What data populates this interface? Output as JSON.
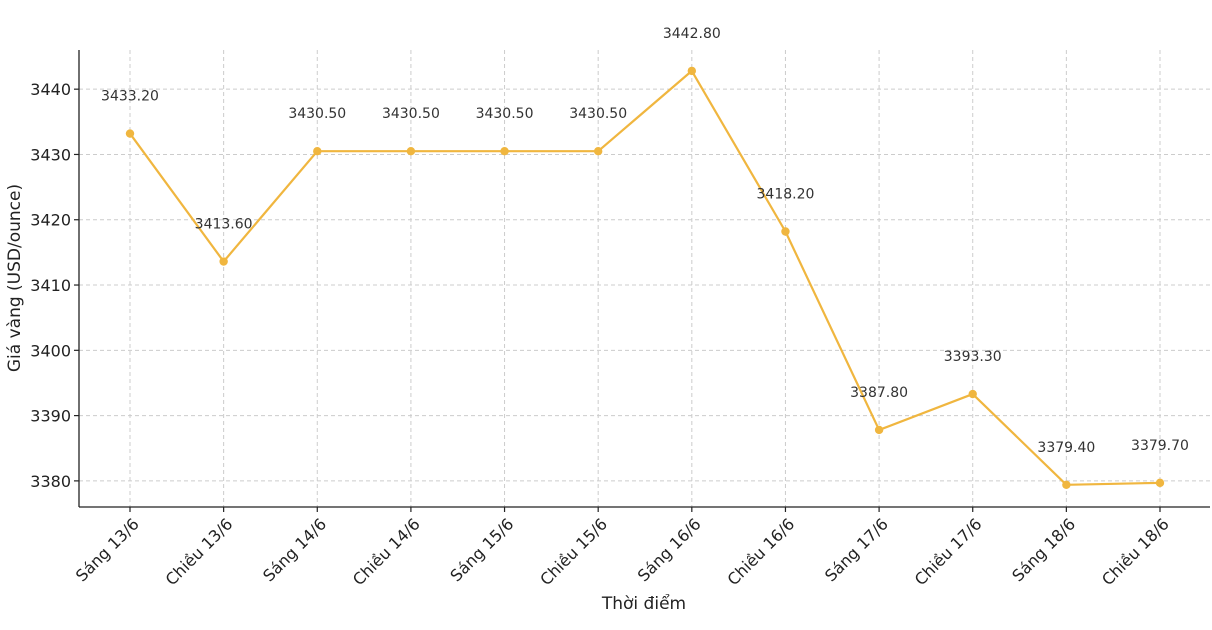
{
  "chart_data": {
    "type": "line",
    "xlabel": "Thời điểm",
    "ylabel": "Giá vàng (USD/ounce)",
    "ylim": [
      3376,
      3446
    ],
    "yticks": [
      3380,
      3390,
      3400,
      3410,
      3420,
      3430,
      3440
    ],
    "grid": true,
    "color": "#f0b63f",
    "categories": [
      "Sáng 13/6",
      "Chiều 13/6",
      "Sáng 14/6",
      "Chiều 14/6",
      "Sáng 15/6",
      "Chiều 15/6",
      "Sáng 16/6",
      "Chiều 16/6",
      "Sáng 17/6",
      "Chiều 17/6",
      "Sáng 18/6",
      "Chiều 18/6"
    ],
    "values": [
      3433.2,
      3413.6,
      3430.5,
      3430.5,
      3430.5,
      3430.5,
      3442.8,
      3418.2,
      3387.8,
      3393.3,
      3379.4,
      3379.7
    ],
    "data_labels": [
      "3433.20",
      "3413.60",
      "3430.50",
      "3430.50",
      "3430.50",
      "3430.50",
      "3442.80",
      "3418.20",
      "3387.80",
      "3393.30",
      "3379.40",
      "3379.70"
    ]
  }
}
